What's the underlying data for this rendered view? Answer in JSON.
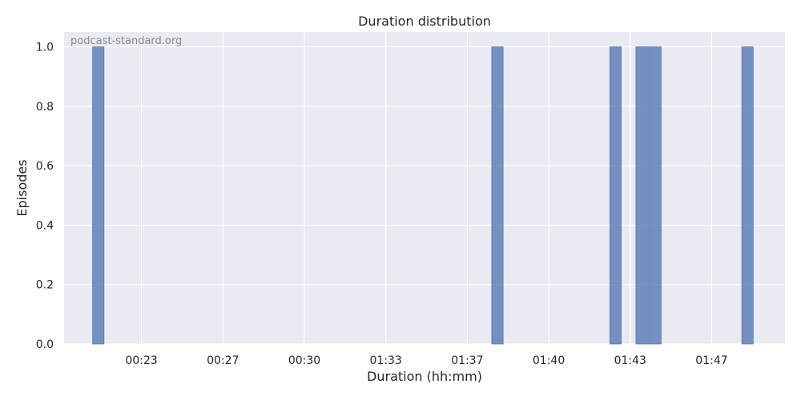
{
  "chart_data": {
    "type": "bar",
    "title": "Duration distribution",
    "xlabel": "Duration (hh:mm)",
    "ylabel": "Episodes",
    "watermark": "podcast-standard.org",
    "x_ticks": [
      {
        "value": 1,
        "label": "00:23"
      },
      {
        "value": 2,
        "label": "00:27"
      },
      {
        "value": 3,
        "label": "00:30"
      },
      {
        "value": 4,
        "label": "01:33"
      },
      {
        "value": 5,
        "label": "01:37"
      },
      {
        "value": 6,
        "label": "01:40"
      },
      {
        "value": 7,
        "label": "01:43"
      },
      {
        "value": 8,
        "label": "01:47"
      }
    ],
    "y_ticks": [
      {
        "value": 0.0,
        "label": "0.0"
      },
      {
        "value": 0.2,
        "label": "0.2"
      },
      {
        "value": 0.4,
        "label": "0.4"
      },
      {
        "value": 0.6,
        "label": "0.6"
      },
      {
        "value": 0.8,
        "label": "0.8"
      },
      {
        "value": 1.0,
        "label": "1.0"
      }
    ],
    "xlim": [
      0.05,
      8.9
    ],
    "ylim": [
      0,
      1.05
    ],
    "bars": [
      {
        "x0": 0.4,
        "x1": 0.54,
        "value": 1
      },
      {
        "x0": 5.3,
        "x1": 5.44,
        "value": 1
      },
      {
        "x0": 6.75,
        "x1": 6.89,
        "value": 1
      },
      {
        "x0": 7.07,
        "x1": 7.23,
        "value": 1
      },
      {
        "x0": 7.24,
        "x1": 7.38,
        "value": 1
      },
      {
        "x0": 8.37,
        "x1": 8.51,
        "value": 1
      }
    ],
    "grid": true,
    "colors": {
      "background": "#eaeaf2",
      "grid": "#ffffff",
      "bar": "#4c72b0"
    }
  }
}
